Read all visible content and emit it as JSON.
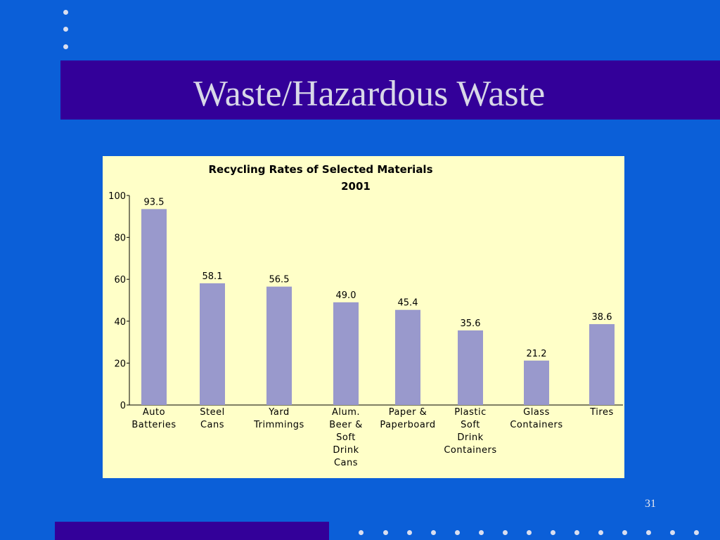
{
  "slide": {
    "title": "Waste/Hazardous Waste",
    "page_number": "31"
  },
  "colors": {
    "background": "#0b5fd8",
    "title_band": "#330099",
    "chart_background": "#ffffc8",
    "bar": "#9999cc",
    "dots": "#d9def0"
  },
  "chart_data": {
    "type": "bar",
    "title": "Recycling Rates of Selected Materials",
    "subtitle": "2001",
    "categories": [
      [
        "Auto",
        "Batteries"
      ],
      [
        "Steel",
        "Cans"
      ],
      [
        "Yard",
        "Trimmings"
      ],
      [
        "Alum.",
        "Beer &",
        "Soft",
        "Drink",
        "Cans"
      ],
      [
        "Paper &",
        "Paperboard"
      ],
      [
        "Plastic",
        "Soft",
        "Drink",
        "Containers"
      ],
      [
        "Glass",
        "Containers"
      ],
      [
        "Tires"
      ]
    ],
    "values": [
      93.5,
      58.1,
      56.5,
      49.0,
      45.4,
      35.6,
      21.2,
      38.6
    ],
    "value_labels": [
      "93.5",
      "58.1",
      "56.5",
      "49.0",
      "45.4",
      "35.6",
      "21.2",
      "38.6"
    ],
    "yticks": [
      "0",
      "20",
      "40",
      "60",
      "80",
      "100"
    ],
    "ylim": [
      0,
      100
    ],
    "grid": false
  }
}
